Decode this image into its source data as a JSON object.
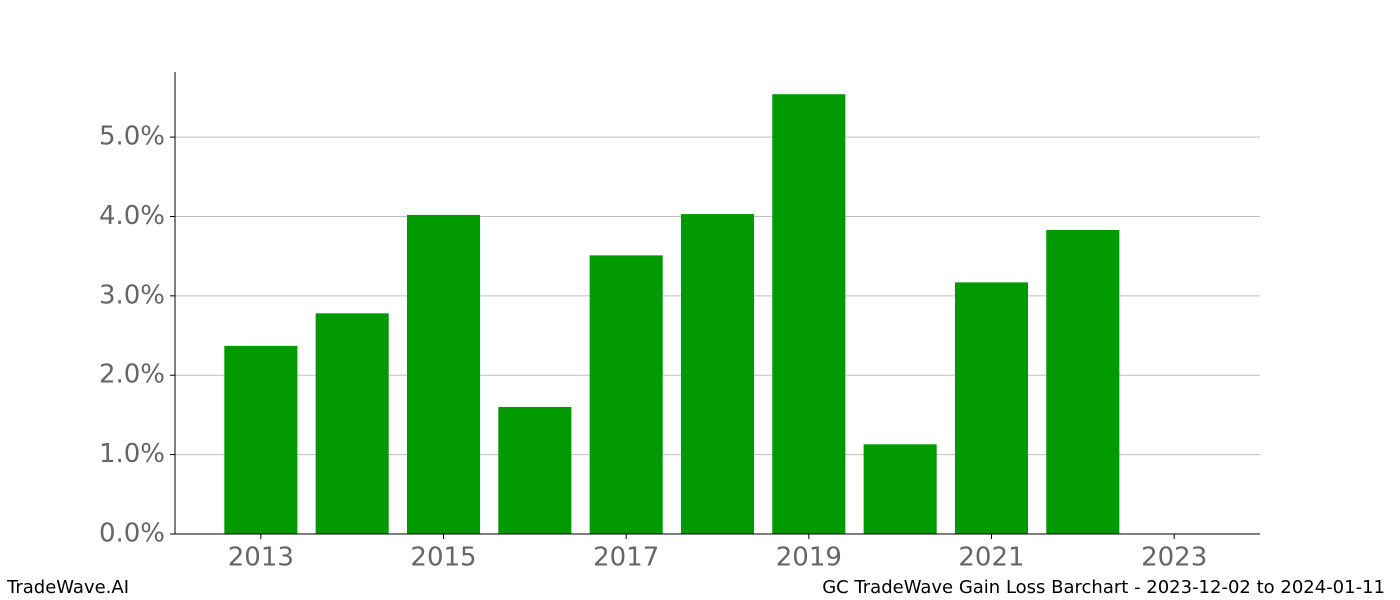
{
  "chart_data": {
    "type": "bar",
    "x": [
      2013,
      2014,
      2015,
      2016,
      2017,
      2018,
      2019,
      2020,
      2021,
      2022,
      2023
    ],
    "values": [
      2.37,
      2.78,
      4.02,
      1.6,
      3.51,
      4.03,
      5.54,
      1.13,
      3.17,
      3.83,
      0
    ],
    "color": "#009900",
    "xlim": [
      2012.06,
      2023.94
    ],
    "xticks": [
      2013,
      2015,
      2017,
      2019,
      2021,
      2023
    ],
    "ylim": [
      0,
      5.82
    ],
    "yticks": [
      {
        "value": 0,
        "label": "0.0%"
      },
      {
        "value": 1,
        "label": "1.0%"
      },
      {
        "value": 2,
        "label": "2.0%"
      },
      {
        "value": 3,
        "label": "3.0%"
      },
      {
        "value": 4,
        "label": "4.0%"
      },
      {
        "value": 5,
        "label": "5.0%"
      }
    ],
    "grid": true,
    "footer_left": "TradeWave.AI",
    "footer_right": "GC TradeWave Gain Loss Barchart - 2023-12-02 to 2024-01-11"
  }
}
